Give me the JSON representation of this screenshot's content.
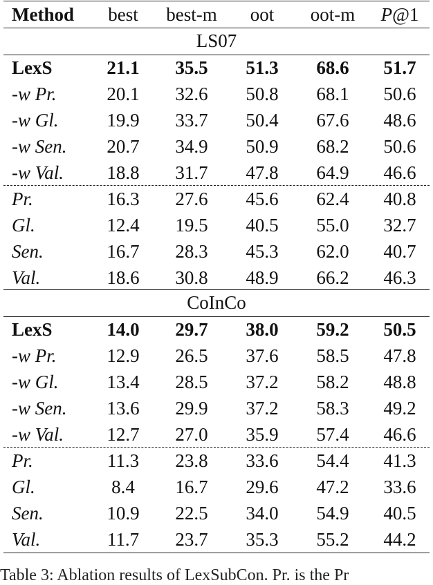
{
  "header": {
    "method": "Method",
    "cols": [
      "best",
      "best-m",
      "oot",
      "oot-m"
    ],
    "p1_italic": "P",
    "p1_rest": "@1"
  },
  "sections": [
    {
      "title": "LS07",
      "rows": [
        {
          "method": "LexS",
          "vals": [
            "21.1",
            "35.5",
            "51.3",
            "68.6",
            "51.7"
          ]
        },
        {
          "method": "-w Pr.",
          "vals": [
            "20.1",
            "32.6",
            "50.8",
            "68.1",
            "50.6"
          ]
        },
        {
          "method": "-w Gl.",
          "vals": [
            "19.9",
            "33.7",
            "50.4",
            "67.6",
            "48.6"
          ]
        },
        {
          "method": "-w Sen.",
          "vals": [
            "20.7",
            "34.9",
            "50.9",
            "68.2",
            "50.6"
          ]
        },
        {
          "method": "-w Val.",
          "vals": [
            "18.8",
            "31.7",
            "47.8",
            "64.9",
            "46.6"
          ]
        },
        {
          "method": "Pr.",
          "vals": [
            "16.3",
            "27.6",
            "45.6",
            "62.4",
            "40.8"
          ]
        },
        {
          "method": "Gl.",
          "vals": [
            "12.4",
            "19.5",
            "40.5",
            "55.0",
            "32.7"
          ]
        },
        {
          "method": "Sen.",
          "vals": [
            "16.7",
            "28.3",
            "45.3",
            "62.0",
            "40.7"
          ]
        },
        {
          "method": "Val.",
          "vals": [
            "18.6",
            "30.8",
            "48.9",
            "66.2",
            "46.3"
          ]
        }
      ]
    },
    {
      "title": "CoInCo",
      "rows": [
        {
          "method": "LexS",
          "vals": [
            "14.0",
            "29.7",
            "38.0",
            "59.2",
            "50.5"
          ]
        },
        {
          "method": "-w Pr.",
          "vals": [
            "12.9",
            "26.5",
            "37.6",
            "58.5",
            "47.8"
          ]
        },
        {
          "method": "-w Gl.",
          "vals": [
            "13.4",
            "28.5",
            "37.2",
            "58.2",
            "48.8"
          ]
        },
        {
          "method": "-w Sen.",
          "vals": [
            "13.6",
            "29.9",
            "37.2",
            "58.3",
            "49.2"
          ]
        },
        {
          "method": "-w Val.",
          "vals": [
            "12.7",
            "27.0",
            "35.9",
            "57.4",
            "46.6"
          ]
        },
        {
          "method": "Pr.",
          "vals": [
            "11.3",
            "23.8",
            "33.6",
            "54.4",
            "41.3"
          ]
        },
        {
          "method": "Gl.",
          "vals": [
            "8.4",
            "16.7",
            "29.6",
            "47.2",
            "33.6"
          ]
        },
        {
          "method": "Sen.",
          "vals": [
            "10.9",
            "22.5",
            "34.0",
            "54.9",
            "40.5"
          ]
        },
        {
          "method": "Val.",
          "vals": [
            "11.7",
            "23.7",
            "35.3",
            "55.2",
            "44.2"
          ]
        }
      ]
    }
  ],
  "caption": "Table 3: Ablation results of LexSubCon. Pr. is the Pr"
}
